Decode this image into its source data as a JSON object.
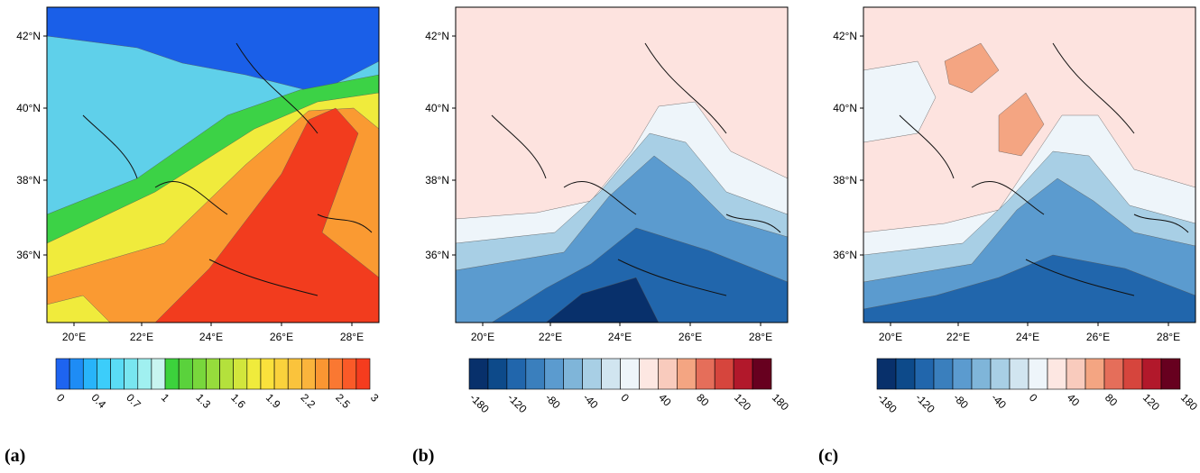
{
  "panels": [
    {
      "label": "(a)",
      "lat_labels": [
        "42°N",
        "40°N",
        "38°N",
        "36°N"
      ],
      "lon_labels": [
        "20°E",
        "22°E",
        "24°E",
        "26°E",
        "28°E"
      ],
      "colorbar": {
        "ticks": [
          "0",
          "0.4",
          "0.7",
          "1",
          "1.3",
          "1.6",
          "1.9",
          "2.2",
          "2.5",
          "3"
        ],
        "colors": [
          "#1e64f0",
          "#1e8cf5",
          "#28b4fa",
          "#3ccdfa",
          "#5adcf5",
          "#78e6f0",
          "#a0f0f0",
          "#c8f5f0",
          "#3cd23c",
          "#5ad23c",
          "#78d73c",
          "#96dc3c",
          "#b4e13c",
          "#d2e63c",
          "#f0eb3c",
          "#fae13c",
          "#fad23c",
          "#fac33c",
          "#fab43c",
          "#fa9632",
          "#fa7832",
          "#fa5a28",
          "#f53c1e"
        ]
      }
    },
    {
      "label": "(b)",
      "lat_labels": [
        "42°N",
        "40°N",
        "38°N",
        "36°N"
      ],
      "lon_labels": [
        "20°E",
        "22°E",
        "24°E",
        "26°E",
        "28°E"
      ],
      "colorbar": {
        "ticks": [
          "-180",
          "-120",
          "-80",
          "-40",
          "0",
          "40",
          "80",
          "120",
          "180"
        ],
        "colors": [
          "#08306b",
          "#0d4a8a",
          "#2166ac",
          "#3a7fbd",
          "#5b9bcf",
          "#7fb5d9",
          "#a8cfe5",
          "#d1e5f0",
          "#eef5fa",
          "#fde7e2",
          "#f9cbbd",
          "#f4a582",
          "#e56e5a",
          "#d6453d",
          "#b2182b",
          "#67001f"
        ]
      }
    },
    {
      "label": "(c)",
      "lat_labels": [
        "42°N",
        "40°N",
        "38°N",
        "36°N"
      ],
      "lon_labels": [
        "20°E",
        "22°E",
        "24°E",
        "26°E",
        "28°E"
      ],
      "colorbar": {
        "ticks": [
          "-180",
          "-120",
          "-80",
          "-40",
          "0",
          "40",
          "80",
          "120",
          "180"
        ],
        "colors": [
          "#08306b",
          "#0d4a8a",
          "#2166ac",
          "#3a7fbd",
          "#5b9bcf",
          "#7fb5d9",
          "#a8cfe5",
          "#d1e5f0",
          "#eef5fa",
          "#fde7e2",
          "#f9cbbd",
          "#f4a582",
          "#e56e5a",
          "#d6453d",
          "#b2182b",
          "#67001f"
        ]
      }
    }
  ]
}
